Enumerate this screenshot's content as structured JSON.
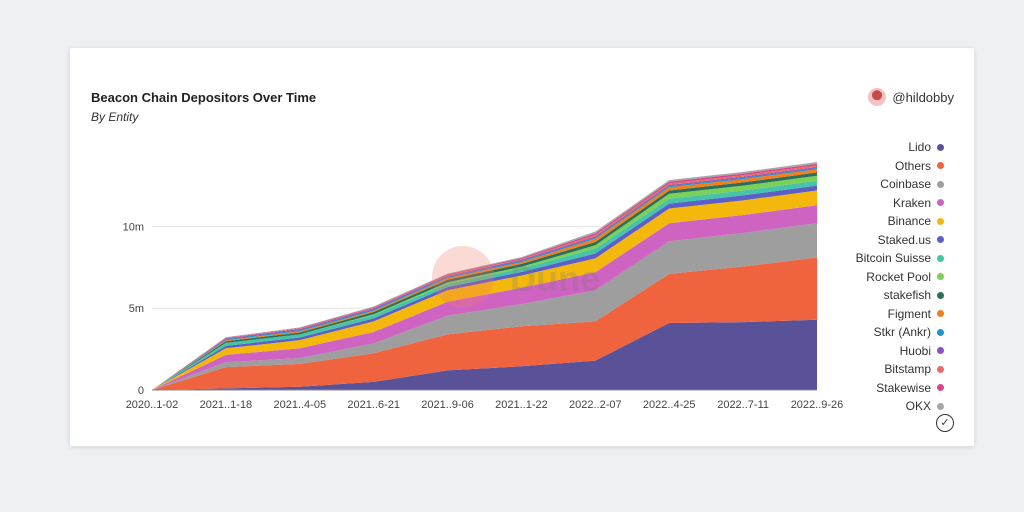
{
  "card": {
    "title": "Beacon Chain Depositors Over Time",
    "subtitle": "By Entity",
    "author": "@hildobby",
    "watermark": "Dune"
  },
  "chart_data": {
    "type": "area",
    "stacked": true,
    "x": [
      "2020..1-02",
      "2021..1-18",
      "2021..4-05",
      "2021..6-21",
      "2021..9-06",
      "2021..1-22",
      "2022..2-07",
      "2022..4-25",
      "2022..7-11",
      "2022..9-26"
    ],
    "yticks": [
      "0",
      "5m",
      "10m"
    ],
    "ylim": [
      0,
      14800000
    ],
    "series": [
      {
        "name": "Lido",
        "color": "#5a5298",
        "values": [
          0,
          100000,
          200000,
          500000,
          1200000,
          1450000,
          1800000,
          4100000,
          4150000,
          4300000
        ]
      },
      {
        "name": "Others",
        "color": "#f0633f",
        "values": [
          0,
          1300000,
          1400000,
          1750000,
          2200000,
          2450000,
          2400000,
          3000000,
          3400000,
          3800000
        ]
      },
      {
        "name": "Coinbase",
        "color": "#9e9e9e",
        "values": [
          0,
          300000,
          350000,
          600000,
          1150000,
          1350000,
          1900000,
          2000000,
          2050000,
          2100000
        ]
      },
      {
        "name": "Kraken",
        "color": "#cf63c2",
        "values": [
          0,
          450000,
          600000,
          700000,
          850000,
          1000000,
          1100000,
          1100000,
          1100000,
          1100000
        ]
      },
      {
        "name": "Binance",
        "color": "#f4b80c",
        "values": [
          0,
          400000,
          500000,
          650000,
          700000,
          750000,
          850000,
          900000,
          900000,
          900000
        ]
      },
      {
        "name": "Staked.us",
        "color": "#5b5fc7",
        "values": [
          0,
          150000,
          160000,
          180000,
          200000,
          220000,
          300000,
          300000,
          300000,
          300000
        ]
      },
      {
        "name": "Bitcoin Suisse",
        "color": "#46c3a8",
        "values": [
          0,
          180000,
          190000,
          200000,
          200000,
          220000,
          300000,
          300000,
          300000,
          300000
        ]
      },
      {
        "name": "Rocket Pool",
        "color": "#7bd158",
        "values": [
          0,
          0,
          0,
          50000,
          80000,
          100000,
          200000,
          300000,
          300000,
          300000
        ]
      },
      {
        "name": "stakefish",
        "color": "#2c6e5c",
        "values": [
          0,
          100000,
          120000,
          140000,
          160000,
          170000,
          200000,
          200000,
          200000,
          200000
        ]
      },
      {
        "name": "Figment",
        "color": "#f07f1c",
        "values": [
          0,
          60000,
          70000,
          80000,
          100000,
          110000,
          200000,
          200000,
          200000,
          200000
        ]
      },
      {
        "name": "Stkr (Ankr)",
        "color": "#2a8fd0",
        "values": [
          0,
          70000,
          80000,
          80000,
          80000,
          80000,
          80000,
          80000,
          80000,
          80000
        ]
      },
      {
        "name": "Huobi",
        "color": "#8a4fc0",
        "values": [
          0,
          50000,
          60000,
          60000,
          60000,
          60000,
          60000,
          60000,
          60000,
          60000
        ]
      },
      {
        "name": "Bitstamp",
        "color": "#ec6a63",
        "values": [
          0,
          30000,
          40000,
          40000,
          40000,
          50000,
          100000,
          100000,
          100000,
          100000
        ]
      },
      {
        "name": "Stakewise",
        "color": "#d5458f",
        "values": [
          0,
          20000,
          30000,
          40000,
          50000,
          60000,
          100000,
          100000,
          100000,
          100000
        ]
      },
      {
        "name": "OKX",
        "color": "#a7a7a7",
        "values": [
          0,
          20000,
          30000,
          40000,
          50000,
          60000,
          100000,
          100000,
          100000,
          100000
        ]
      }
    ]
  }
}
